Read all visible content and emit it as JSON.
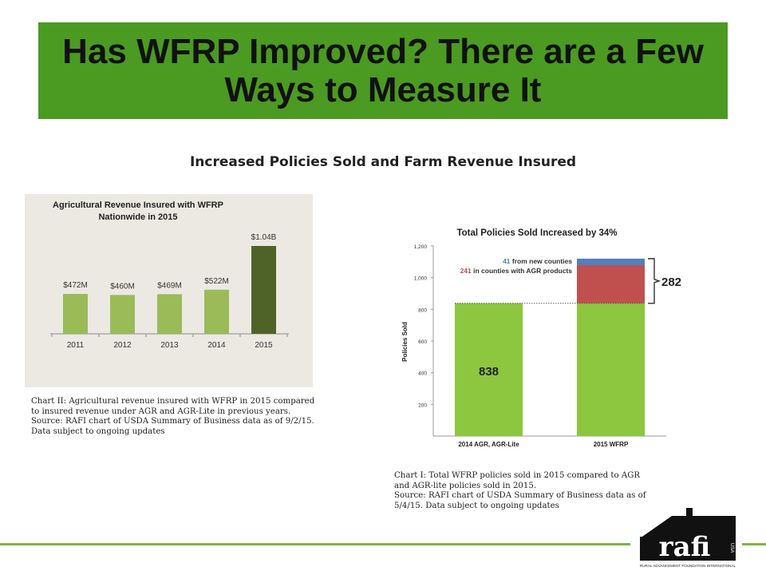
{
  "slide": {
    "title": "Has WFRP Improved? There are a Few Ways to Measure It",
    "subtitle": "Increased Policies Sold and Farm Revenue Insured",
    "banner_color": "#4b9a22"
  },
  "chart2": {
    "caption_lines": [
      "Chart II: Agricultural revenue insured with WFRP in 2015 compared",
      "to insured revenue under AGR and AGR-Lite in previous years.",
      "Source: RAFI chart of USDA Summary of Business data as of 9/2/15.",
      "Data subject to ongoing updates"
    ]
  },
  "chart1": {
    "caption_lines": [
      "Chart I: Total WFRP policies sold in 2015 compared to AGR",
      "and AGR-lite policies sold in 2015.",
      "Source: RAFI chart of USDA Summary of Business data as of",
      "5/4/15. Data subject to ongoing updates"
    ]
  },
  "logo": {
    "wordmark": "rafi",
    "country": "USA",
    "tagline": "RURAL ADVANCEMENT FOUNDATION INTERNATIONAL"
  },
  "chart_data": [
    {
      "type": "bar",
      "title": "Agricultural Revenue Insured with WFRP Nationwide in 2015",
      "title_lines": [
        "Agricultural Revenue Insured with WFRP",
        "Nationwide in 2015"
      ],
      "categories": [
        "2011",
        "2012",
        "2013",
        "2014",
        "2015"
      ],
      "values": [
        472,
        460,
        469,
        522,
        1040
      ],
      "value_labels": [
        "$472M",
        "$460M",
        "$469M",
        "$522M",
        "$1.04B"
      ],
      "unit": "million USD",
      "colors": [
        "#9bbb59",
        "#9bbb59",
        "#9bbb59",
        "#9bbb59",
        "#4f6228"
      ],
      "ylim": [
        0,
        1200
      ],
      "grid": false,
      "xlabel": "",
      "ylabel": ""
    },
    {
      "type": "bar",
      "stacked": true,
      "title": "Total Policies Sold Increased by 34%",
      "categories": [
        "2014 AGR, AGR-Lite",
        "2015 WFRP"
      ],
      "series": [
        {
          "values": [
            838,
            838
          ],
          "color": "#8dc63f"
        },
        {
          "name": "241 in counties with AGR products",
          "values": [
            0,
            241
          ],
          "color": "#c0504d"
        },
        {
          "name": "41 from new counties",
          "values": [
            0,
            41
          ],
          "color": "#4f81bd"
        }
      ],
      "bar_label": "838",
      "increase_label": "282",
      "legend_parts": [
        {
          "count": "41",
          "text": " from new counties",
          "color": "#4f81bd"
        },
        {
          "count": "241",
          "text": " in counties with AGR products",
          "color": "#c0504d"
        }
      ],
      "ylabel": "Policies Sold",
      "xlabel": "",
      "yticks": [
        "200",
        "400",
        "600",
        "800",
        "1,000",
        "1,200"
      ],
      "ylim": [
        0,
        1200
      ],
      "grid": false
    }
  ]
}
